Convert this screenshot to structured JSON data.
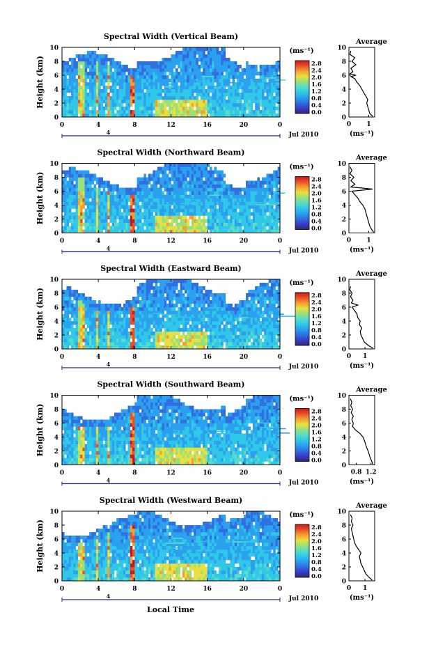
{
  "figure": {
    "xlabel": "Local Time",
    "date_label": "Jul 2010",
    "colorbar_unit": "(ms⁻¹)",
    "colorbar_ticks": [
      "0.0",
      "0.4",
      "0.8",
      "1.2",
      "1.6",
      "2.0",
      "2.4",
      "2.8"
    ],
    "palette": [
      "#2a2a6e",
      "#3b3bc8",
      "#2f6fe0",
      "#2aa0ee",
      "#30c8e8",
      "#58dcc8",
      "#9ae07a",
      "#e8e040",
      "#f4a030",
      "#e85028",
      "#c81818"
    ],
    "background_color": "#ffffff"
  },
  "chart_data": [
    {
      "type": "heatmap",
      "title": "Spectral Width (Vertical Beam)",
      "ylabel": "Height (km)",
      "xlim": [
        0,
        24
      ],
      "ylim": [
        0,
        10
      ],
      "xticks": [
        "0",
        "4",
        "8",
        "12",
        "16",
        "20",
        "0"
      ],
      "yticks": [
        "0",
        "2",
        "4",
        "6",
        "8",
        "10"
      ],
      "marker_label": "4",
      "avg": {
        "title": "Average",
        "xlabel": "(ms⁻¹)",
        "xlim": [
          0,
          1.3
        ],
        "xticks": [
          "0",
          "1"
        ],
        "height": [
          0.1,
          0.5,
          1.0,
          1.5,
          2.0,
          2.5,
          3.0,
          3.5,
          4.0,
          4.5,
          5.0,
          5.5,
          5.8,
          6.0,
          6.2,
          6.5,
          7.0,
          7.5,
          8.0,
          8.5,
          9.0,
          9.5
        ],
        "value": [
          1.2,
          1.05,
          1.0,
          0.95,
          0.9,
          0.95,
          0.85,
          0.75,
          0.65,
          0.55,
          0.4,
          0.3,
          0.1,
          0.35,
          0.05,
          0.2,
          0.1,
          0.35,
          0.15,
          0.3,
          0.05,
          0.1
        ]
      }
    },
    {
      "type": "heatmap",
      "title": "Spectral Width (Northward Beam)",
      "ylabel": "Height (km)",
      "xlim": [
        0,
        24
      ],
      "ylim": [
        0,
        10
      ],
      "xticks": [
        "0",
        "4",
        "8",
        "12",
        "16",
        "20",
        "0"
      ],
      "yticks": [
        "0",
        "2",
        "4",
        "6",
        "8",
        "10"
      ],
      "marker_label": "4",
      "avg": {
        "title": "Average",
        "xlabel": "(ms⁻¹)",
        "xlim": [
          0,
          1.3
        ],
        "xticks": [
          "0",
          "1"
        ],
        "height": [
          0.1,
          0.5,
          1.0,
          1.5,
          2.0,
          2.5,
          3.0,
          3.5,
          4.0,
          4.5,
          5.0,
          5.5,
          6.0,
          6.3,
          6.6,
          7.0,
          7.5,
          8.0,
          8.5,
          9.0,
          9.5
        ],
        "value": [
          1.25,
          1.15,
          1.05,
          1.0,
          0.95,
          0.9,
          0.85,
          0.8,
          0.7,
          0.55,
          0.45,
          0.3,
          0.15,
          1.2,
          0.1,
          0.3,
          0.1,
          0.25,
          0.05,
          0.15,
          0.05
        ]
      }
    },
    {
      "type": "heatmap",
      "title": "Spectral Width (Eastward Beam)",
      "ylabel": "Height (km)",
      "xlim": [
        0,
        24
      ],
      "ylim": [
        0,
        10
      ],
      "xticks": [
        "0",
        "4",
        "8",
        "12",
        "16",
        "20",
        "0"
      ],
      "yticks": [
        "0",
        "2",
        "4",
        "6",
        "8",
        "10"
      ],
      "marker_label": "4",
      "avg": {
        "title": "Average",
        "xlabel": "(ms⁻¹)",
        "xlim": [
          0,
          1.6
        ],
        "xticks": [
          "0",
          "1"
        ],
        "height": [
          0.1,
          0.5,
          1.0,
          1.5,
          2.0,
          2.5,
          3.0,
          3.5,
          4.0,
          4.5,
          5.0,
          5.5,
          6.0,
          6.3,
          6.6,
          7.0,
          7.5,
          8.0,
          8.5,
          9.0
        ],
        "value": [
          1.5,
          1.2,
          0.95,
          0.85,
          0.75,
          0.7,
          0.8,
          0.65,
          0.7,
          0.55,
          0.5,
          0.35,
          0.2,
          0.55,
          0.15,
          0.25,
          0.1,
          0.2,
          0.05,
          0.1
        ]
      }
    },
    {
      "type": "heatmap",
      "title": "Spectral Width (Southward Beam)",
      "ylabel": "Height (km)",
      "xlim": [
        0,
        24
      ],
      "ylim": [
        0,
        10
      ],
      "xticks": [
        "0",
        "4",
        "8",
        "12",
        "16",
        "20",
        "0"
      ],
      "yticks": [
        "0",
        "2",
        "4",
        "6",
        "8",
        "10"
      ],
      "marker_label": "4",
      "avg": {
        "title": "Average",
        "xlabel": "(ms⁻¹)",
        "xlim": [
          0.6,
          1.3
        ],
        "xticks": [
          "0.8",
          "1.2"
        ],
        "height": [
          0.1,
          0.5,
          1.0,
          1.5,
          2.0,
          2.5,
          3.0,
          3.5,
          4.0,
          4.5,
          5.0,
          5.5,
          6.0,
          6.5,
          7.0,
          7.5,
          8.0,
          8.5,
          9.0,
          9.5
        ],
        "value": [
          1.25,
          1.22,
          1.18,
          1.15,
          1.12,
          1.08,
          1.05,
          1.02,
          0.98,
          0.9,
          0.78,
          0.7,
          0.72,
          0.68,
          0.72,
          0.66,
          0.7,
          0.65,
          0.68,
          0.64
        ]
      }
    },
    {
      "type": "heatmap",
      "title": "Spectral Width (Westward Beam)",
      "ylabel": "Height (km)",
      "xlim": [
        0,
        24
      ],
      "ylim": [
        0,
        10
      ],
      "xticks": [
        "0",
        "4",
        "8",
        "12",
        "16",
        "20",
        "0"
      ],
      "yticks": [
        "0",
        "2",
        "4",
        "6",
        "8",
        "10"
      ],
      "marker_label": "4",
      "avg": {
        "title": "Average",
        "xlabel": "(ms⁻¹)",
        "xlim": [
          0,
          1.6
        ],
        "xticks": [
          "0",
          "1"
        ],
        "height": [
          0.1,
          0.5,
          1.0,
          1.5,
          2.0,
          2.5,
          3.0,
          3.5,
          4.0,
          4.5,
          5.0,
          5.5,
          6.0,
          6.5,
          7.0,
          7.5,
          8.0,
          8.5,
          9.0,
          9.5
        ],
        "value": [
          1.45,
          1.25,
          1.05,
          0.95,
          0.85,
          0.75,
          0.7,
          0.65,
          0.75,
          0.6,
          0.45,
          0.35,
          0.3,
          0.25,
          0.2,
          0.15,
          0.25,
          0.15,
          0.2,
          0.1
        ]
      }
    }
  ]
}
